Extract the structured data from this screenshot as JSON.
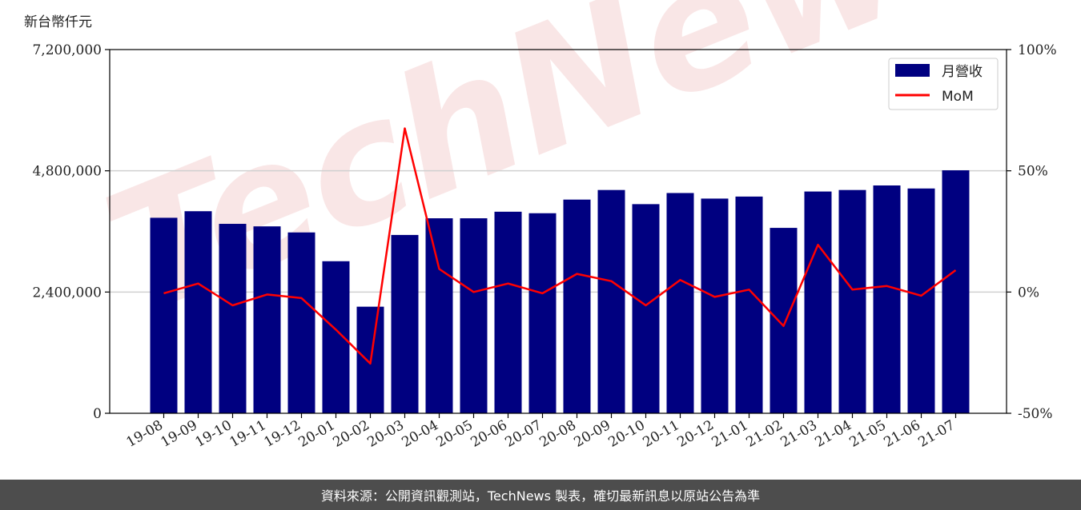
{
  "chart_data": {
    "type": "bar",
    "unit_label": "新台幣仟元",
    "categories": [
      "19-08",
      "19-09",
      "19-10",
      "19-11",
      "19-12",
      "20-01",
      "20-02",
      "20-03",
      "20-04",
      "20-05",
      "20-06",
      "20-07",
      "20-08",
      "20-09",
      "20-10",
      "20-11",
      "20-12",
      "21-01",
      "21-02",
      "21-03",
      "21-04",
      "21-05",
      "21-06",
      "21-07"
    ],
    "series": [
      {
        "name": "月營收",
        "axis": "left",
        "type": "bar",
        "color": "#000080",
        "values": [
          3870000,
          4000000,
          3750000,
          3700000,
          3580000,
          3010000,
          2110000,
          3530000,
          3860000,
          3860000,
          3990000,
          3960000,
          4230000,
          4420000,
          4140000,
          4360000,
          4250000,
          4290000,
          3670000,
          4390000,
          4420000,
          4510000,
          4450000,
          4810000
        ]
      },
      {
        "name": "MoM",
        "axis": "right",
        "type": "line",
        "color": "#ff0000",
        "values": [
          -0.5,
          3.5,
          -5.5,
          -1.0,
          -2.5,
          -15.5,
          -29.5,
          67.5,
          9.5,
          0.0,
          3.5,
          -0.5,
          7.5,
          4.5,
          -5.5,
          5.0,
          -2.0,
          1.0,
          -14.0,
          19.5,
          1.0,
          2.5,
          -1.5,
          9.0
        ]
      }
    ],
    "y_left": {
      "ylim": [
        0,
        7200000
      ],
      "ticks": [
        "0",
        "2,400,000",
        "4,800,000",
        "7,200,000"
      ],
      "tick_values": [
        0,
        2400000,
        4800000,
        7200000
      ]
    },
    "y_right": {
      "ylim": [
        -50,
        100
      ],
      "ticks": [
        "-50%",
        "0%",
        "50%",
        "100%"
      ],
      "tick_values": [
        -50,
        0,
        50,
        100
      ]
    },
    "grid": "horizontal",
    "legend_position": "top-right",
    "legend": [
      {
        "label": "月營收",
        "kind": "bar",
        "color": "#000080"
      },
      {
        "label": "MoM",
        "kind": "line",
        "color": "#ff0000"
      }
    ]
  },
  "watermark": "TechNews",
  "footer": "資料來源：公開資訊觀測站，TechNews 製表，確切最新訊息以原站公告為準"
}
